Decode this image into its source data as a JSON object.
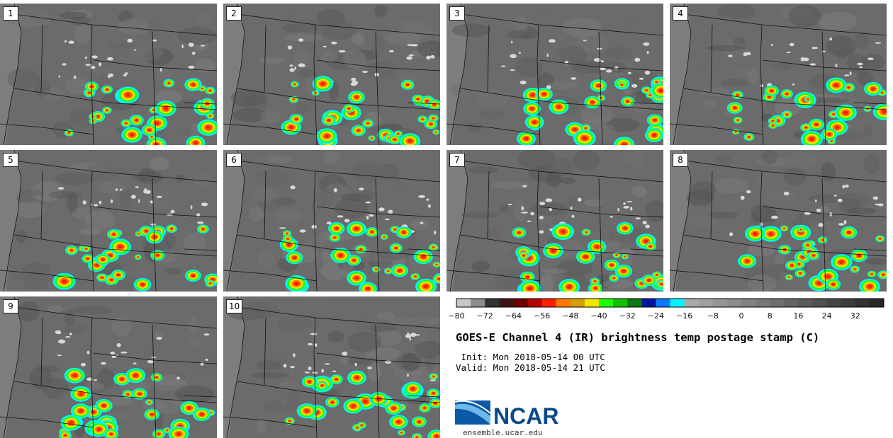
{
  "panels": [
    {
      "label": "1",
      "variant": 0
    },
    {
      "label": "2",
      "variant": 1
    },
    {
      "label": "3",
      "variant": 2
    },
    {
      "label": "4",
      "variant": 3
    },
    {
      "label": "5",
      "variant": 4
    },
    {
      "label": "6",
      "variant": 5
    },
    {
      "label": "7",
      "variant": 6
    },
    {
      "label": "8",
      "variant": 7
    },
    {
      "label": "9",
      "variant": 8
    },
    {
      "label": "10",
      "variant": 9
    }
  ],
  "colorbar": {
    "min": -80,
    "max": 40,
    "ticks": [
      "−80",
      "−72",
      "−64",
      "−56",
      "−48",
      "−40",
      "−32",
      "−24",
      "−16",
      "−8",
      "0",
      "8",
      "16",
      "24",
      "32"
    ],
    "tick_values": [
      -80,
      -72,
      -64,
      -56,
      -48,
      -40,
      -32,
      -24,
      -16,
      -8,
      0,
      8,
      16,
      24,
      32
    ],
    "colors": [
      "#c8c8c8",
      "#8c8c8c",
      "#323232",
      "#3c1414",
      "#6e0000",
      "#b40000",
      "#ff1e00",
      "#ff7800",
      "#d2a000",
      "#f0e600",
      "#1eff00",
      "#14be00",
      "#0a7814",
      "#0014a0",
      "#0a78ff",
      "#00f5ff",
      "#aaaaaa",
      "#a0a0a0",
      "#969696",
      "#8c8c8c",
      "#828282",
      "#787878",
      "#6e6e6e",
      "#646464",
      "#5a5a5a",
      "#505050",
      "#464646",
      "#3c3c3c",
      "#323232",
      "#282828"
    ]
  },
  "title": "GOES-E Channel 4 (IR) brightness temp postage stamp (C)",
  "init": " Init: Mon 2018-05-14 00 UTC",
  "valid": "Valid: Mon 2018-05-14 21 UTC",
  "logo_text": "NCAR",
  "url": "ensemble.ucar.edu"
}
